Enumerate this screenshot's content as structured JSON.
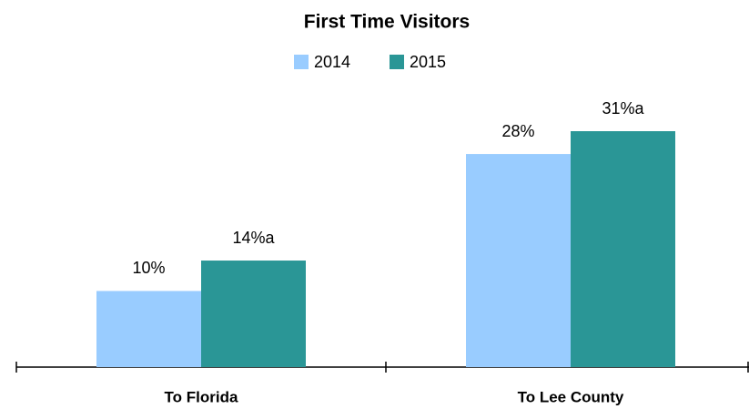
{
  "chart_data": {
    "type": "bar",
    "title": "First Time Visitors",
    "categories": [
      "To Florida",
      "To Lee County"
    ],
    "series": [
      {
        "name": "2014",
        "color": "#99ccff",
        "values": [
          10,
          28
        ],
        "value_labels": [
          "10%",
          "28%"
        ]
      },
      {
        "name": "2015",
        "color": "#2a9696",
        "values": [
          14,
          31
        ],
        "value_labels": [
          "14%a",
          "31%a"
        ]
      }
    ]
  }
}
